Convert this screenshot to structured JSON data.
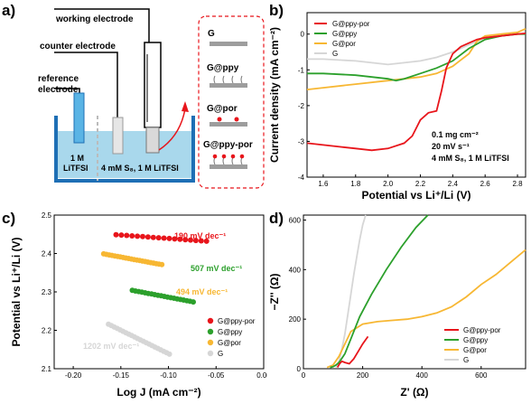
{
  "panels": {
    "a": "a)",
    "b": "b)",
    "c": "c)",
    "d": "d)"
  },
  "panel_a": {
    "working_electrode": "working electrode",
    "counter_electrode": "counter electrode",
    "reference_electrode_line1": "reference",
    "reference_electrode_line2": "electrode",
    "ref_solution_line1": "1 M",
    "ref_solution_line2": "LiTFSI",
    "main_solution": "4 mM S₈, 1 M LiTFSI",
    "samples": [
      "G",
      "G@ppy",
      "G@por",
      "G@ppy-por"
    ],
    "colors": {
      "bath": "#a9d8ec",
      "border": "#1e6fb5",
      "dot": "#e8151b",
      "electrode": "#5ab4e5"
    }
  },
  "chart_data": [
    {
      "panel": "b",
      "type": "line",
      "xlabel": "Potential vs Li⁺/Li (V)",
      "ylabel": "Current density (mA cm⁻²)",
      "xlim": [
        1.5,
        2.85
      ],
      "ylim": [
        -4.0,
        0.6
      ],
      "xticks": [
        "1.6",
        "1.8",
        "2.0",
        "2.2",
        "2.4",
        "2.6",
        "2.8"
      ],
      "yticks": [
        "0",
        "-1",
        "-2",
        "-3",
        "-4"
      ],
      "annotations": [
        "0.1 mg cm⁻²",
        "20 mV s⁻¹",
        "4 mM S₈, 1 M LiTFSI"
      ],
      "legend_position": "top-left",
      "series": [
        {
          "name": "G@ppy-por",
          "color": "#e8151b",
          "x": [
            1.5,
            1.6,
            1.7,
            1.8,
            1.9,
            2.0,
            2.1,
            2.15,
            2.2,
            2.25,
            2.3,
            2.33,
            2.36,
            2.4,
            2.45,
            2.5,
            2.55,
            2.6,
            2.7,
            2.8,
            2.85
          ],
          "y": [
            -3.05,
            -3.1,
            -3.15,
            -3.2,
            -3.25,
            -3.2,
            -3.05,
            -2.85,
            -2.4,
            -2.2,
            -2.15,
            -1.6,
            -0.95,
            -0.55,
            -0.35,
            -0.25,
            -0.15,
            -0.1,
            -0.05,
            0.0,
            0.02
          ]
        },
        {
          "name": "G@ppy",
          "color": "#2ca02c",
          "x": [
            1.5,
            1.6,
            1.8,
            2.0,
            2.05,
            2.1,
            2.2,
            2.3,
            2.4,
            2.5,
            2.6,
            2.7,
            2.8,
            2.85
          ],
          "y": [
            -1.1,
            -1.1,
            -1.15,
            -1.25,
            -1.3,
            -1.25,
            -1.1,
            -0.95,
            -0.75,
            -0.4,
            -0.15,
            -0.05,
            0.0,
            0.0
          ]
        },
        {
          "name": "G@por",
          "color": "#f7b733",
          "x": [
            1.5,
            1.6,
            1.8,
            2.0,
            2.1,
            2.2,
            2.3,
            2.4,
            2.5,
            2.55,
            2.6,
            2.7,
            2.8,
            2.85
          ],
          "y": [
            -1.55,
            -1.5,
            -1.4,
            -1.3,
            -1.25,
            -1.2,
            -1.1,
            -0.9,
            -0.55,
            -0.2,
            -0.05,
            0.0,
            0.05,
            0.15
          ]
        },
        {
          "name": "G",
          "color": "#d6d6d6",
          "x": [
            1.5,
            1.6,
            1.8,
            1.9,
            2.0,
            2.1,
            2.2,
            2.3,
            2.4,
            2.5,
            2.6,
            2.7,
            2.8,
            2.85
          ],
          "y": [
            -0.7,
            -0.7,
            -0.75,
            -0.8,
            -0.85,
            -0.8,
            -0.75,
            -0.65,
            -0.5,
            -0.3,
            -0.1,
            -0.05,
            0.0,
            0.0
          ]
        }
      ]
    },
    {
      "panel": "c",
      "type": "scatter",
      "xlabel": "Log J (mA cm⁻²)",
      "ylabel": "Potential vs Li⁺/Li (V)",
      "xlim": [
        -0.22,
        0.0
      ],
      "ylim": [
        2.1,
        2.5
      ],
      "xticks": [
        "-0.20",
        "-0.15",
        "-0.10",
        "-0.05",
        "0.00"
      ],
      "yticks": [
        "2.1",
        "2.2",
        "2.3",
        "2.4",
        "2.5"
      ],
      "legend_position": "bottom-right",
      "series": [
        {
          "name": "G@ppy-por",
          "color": "#e8151b",
          "slope_label": "190 mV dec⁻¹",
          "x0": -0.155,
          "x1": -0.06,
          "y0": 2.449,
          "y1": 2.432,
          "n": 18
        },
        {
          "name": "G@ppy",
          "color": "#2ca02c",
          "slope_label": "507 mV dec⁻¹",
          "x0": -0.138,
          "x1": -0.074,
          "y0": 2.304,
          "y1": 2.274,
          "n": 20
        },
        {
          "name": "G@por",
          "color": "#f7b733",
          "slope_label": "494 mV dec⁻¹",
          "x0": -0.168,
          "x1": -0.107,
          "y0": 2.399,
          "y1": 2.371,
          "n": 22
        },
        {
          "name": "G",
          "color": "#d6d6d6",
          "slope_label": "1202 mV dec⁻¹",
          "x0": -0.163,
          "x1": -0.099,
          "y0": 2.216,
          "y1": 2.138,
          "n": 22
        }
      ]
    },
    {
      "panel": "d",
      "type": "line",
      "xlabel": "Z' (Ω)",
      "ylabel": "−Z'' (Ω)",
      "xlim": [
        0,
        750
      ],
      "ylim": [
        0,
        620
      ],
      "xticks": [
        "0",
        "200",
        "400",
        "600"
      ],
      "yticks": [
        "0",
        "200",
        "400",
        "600"
      ],
      "legend_position": "bottom-right",
      "series": [
        {
          "name": "G@ppy-por",
          "color": "#e8151b",
          "x": [
            115,
            122,
            130,
            140,
            155,
            170,
            185,
            200,
            212,
            218
          ],
          "y": [
            5,
            20,
            30,
            25,
            20,
            40,
            70,
            100,
            120,
            130
          ]
        },
        {
          "name": "G@ppy",
          "color": "#2ca02c",
          "x": [
            90,
            100,
            110,
            120,
            140,
            160,
            190,
            230,
            280,
            330,
            380,
            420
          ],
          "y": [
            5,
            8,
            15,
            25,
            60,
            120,
            210,
            300,
            400,
            490,
            570,
            620
          ]
        },
        {
          "name": "G@por",
          "color": "#f7b733",
          "x": [
            80,
            100,
            120,
            140,
            160,
            200,
            250,
            300,
            350,
            400,
            450,
            500,
            550,
            600,
            650,
            700,
            750
          ],
          "y": [
            5,
            15,
            50,
            100,
            150,
            180,
            190,
            195,
            200,
            210,
            225,
            250,
            290,
            340,
            380,
            430,
            480
          ]
        },
        {
          "name": "G",
          "color": "#d6d6d6",
          "x": [
            110,
            120,
            130,
            140,
            150,
            160,
            170,
            180,
            190,
            200,
            210
          ],
          "y": [
            5,
            30,
            80,
            140,
            220,
            300,
            380,
            450,
            520,
            580,
            620
          ]
        }
      ]
    }
  ]
}
